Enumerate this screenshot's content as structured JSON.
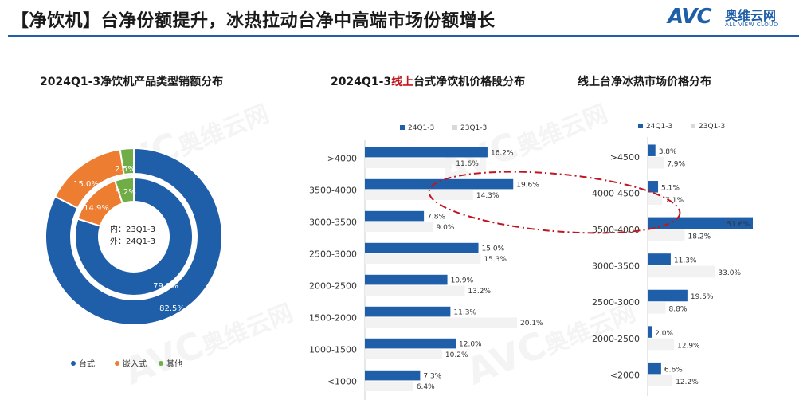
{
  "page_title": "【净饮机】台净份额提升，冰热拉动台净中高端市场份额增长",
  "logo": {
    "mark": "AVC",
    "name_cn": "奥维云网",
    "name_en": "ALL VIEW CLOUD"
  },
  "watermark": {
    "mark": "AVC",
    "name_cn": "奥维云网",
    "name_en": "ALL VIEW CLOUD"
  },
  "colors": {
    "blue": "#1f5ea8",
    "orange": "#ed7d31",
    "green": "#70ad47",
    "light": "#f2f2f2",
    "title_rule": "#1f5ea8",
    "highlight": "#c0161f"
  },
  "chart_data": [
    {
      "type": "pie",
      "variant": "double-donut",
      "title": "2024Q1-3净饮机产品类型销额分布",
      "categories": [
        "台式",
        "嵌入式",
        "其他"
      ],
      "colors": [
        "#1f5ea8",
        "#ed7d31",
        "#70ad47"
      ],
      "series": [
        {
          "name": "24Q1-3",
          "ring": "outer",
          "values": [
            82.5,
            15.0,
            2.5
          ],
          "labels": [
            "82.5%",
            "15.0%",
            "2.5%"
          ]
        },
        {
          "name": "23Q1-3",
          "ring": "inner",
          "values": [
            79.9,
            14.9,
            5.2
          ],
          "labels": [
            "79.9%",
            "14.9%",
            "5.2%"
          ]
        }
      ],
      "center_text": [
        "内：23Q1-3",
        "外：24Q1-3"
      ],
      "legend": [
        "台式",
        "嵌入式",
        "其他"
      ],
      "legend_position": "bottom"
    },
    {
      "type": "bar",
      "orientation": "horizontal",
      "title_parts": [
        "2024Q1-3",
        "线上",
        "台式净饮机价格段分布"
      ],
      "categories": [
        ">4000",
        "3500-4000",
        "3000-3500",
        "2500-3000",
        "2000-2500",
        "1500-2000",
        "1000-1500",
        "<1000"
      ],
      "series": [
        {
          "name": "24Q1-3",
          "color": "#1f5ea8",
          "values": [
            16.2,
            19.6,
            7.8,
            15.0,
            10.9,
            11.3,
            12.0,
            7.3
          ],
          "labels": [
            "16.2%",
            "19.6%",
            "7.8%",
            "15.0%",
            "10.9%",
            "11.3%",
            "12.0%",
            "7.3%"
          ]
        },
        {
          "name": "23Q1-3",
          "color": "#f2f2f2",
          "values": [
            11.6,
            14.3,
            9.0,
            15.3,
            13.2,
            20.1,
            10.2,
            6.4
          ],
          "labels": [
            "11.6%",
            "14.3%",
            "9.0%",
            "15.3%",
            "13.2%",
            "20.1%",
            "10.2%",
            "6.4%"
          ]
        }
      ],
      "legend_position": "top",
      "grid": false
    },
    {
      "type": "bar",
      "orientation": "horizontal",
      "title": "线上台净冰热市场价格分布",
      "categories": [
        ">4500",
        "4000-4500",
        "3500-4000",
        "3000-3500",
        "2500-3000",
        "2000-2500",
        "<2000"
      ],
      "series": [
        {
          "name": "24Q1-3",
          "color": "#1f5ea8",
          "values": [
            3.8,
            5.1,
            51.6,
            11.3,
            19.5,
            2.0,
            6.6
          ],
          "labels": [
            "3.8%",
            "5.1%",
            "51.6%",
            "11.3%",
            "19.5%",
            "2.0%",
            "6.6%"
          ]
        },
        {
          "name": "23Q1-3",
          "color": "#f2f2f2",
          "values": [
            7.9,
            7.1,
            18.2,
            33.0,
            8.8,
            12.9,
            12.2
          ],
          "labels": [
            "7.9%",
            "7.1%",
            "18.2%",
            "33.0%",
            "8.8%",
            "12.9%",
            "12.2%"
          ]
        }
      ],
      "legend_position": "top",
      "grid": false
    }
  ]
}
